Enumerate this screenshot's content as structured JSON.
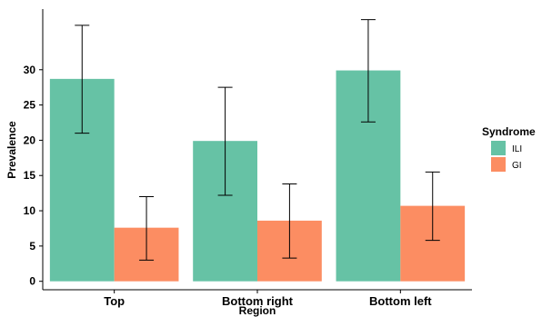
{
  "chart_data": {
    "type": "bar",
    "categories": [
      "Top",
      "Bottom right",
      "Bottom left"
    ],
    "series": [
      {
        "name": "ILI",
        "values": [
          28.7,
          19.9,
          29.9
        ],
        "error_low": [
          21.0,
          12.2,
          22.6
        ],
        "error_high": [
          36.3,
          27.5,
          37.1
        ],
        "color": "#66c2a5"
      },
      {
        "name": "GI",
        "values": [
          7.6,
          8.6,
          10.7
        ],
        "error_low": [
          3.0,
          3.3,
          5.8
        ],
        "error_high": [
          12.0,
          13.8,
          15.5
        ],
        "color": "#fc8d62"
      }
    ],
    "xlabel": "Region",
    "ylabel": "Prevalence",
    "yticks": [
      0,
      5,
      10,
      15,
      20,
      25,
      30
    ],
    "ylim": [
      -1.2,
      38.6
    ],
    "legend_title": "Syndrome",
    "legend_position": "right",
    "grid": false
  }
}
